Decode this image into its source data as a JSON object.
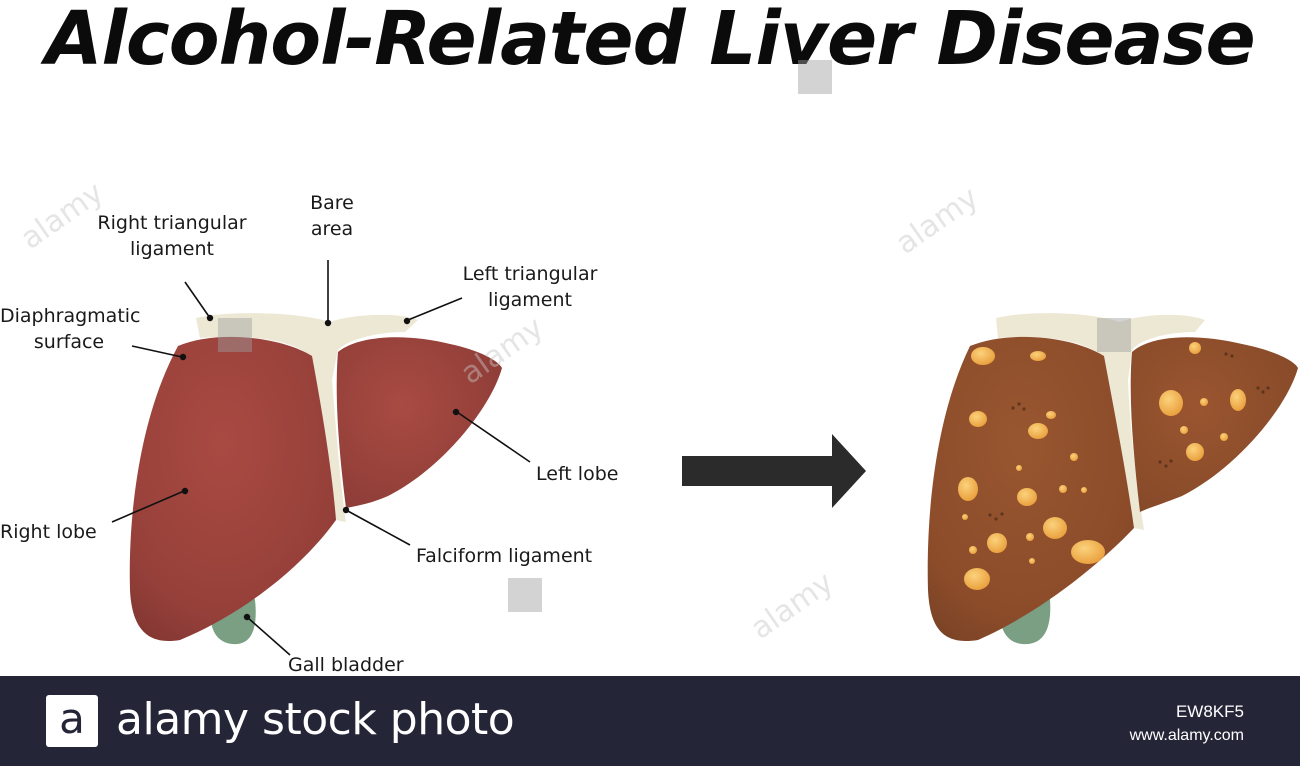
{
  "title": "Alcohol-Related Liver Disease",
  "labels": {
    "right_triangular": "Right triangular\nligament",
    "bare_area": "Bare\narea",
    "left_triangular": "Left triangular\nligament",
    "diaphragmatic": "Diaphragmatic\nsurface",
    "left_lobe": "Left lobe",
    "right_lobe": "Right lobe",
    "falciform": "Falciform ligament",
    "gall_bladder": "Gall bladder"
  },
  "footer": {
    "logo_letter": "a",
    "brand": "alamy stock photo",
    "image_code": "EW8KF5",
    "url": "www.alamy.com"
  },
  "watermark": "alamy",
  "colors": {
    "healthy_liver": "#a5483f",
    "fatty_liver": "#94522b",
    "ligament": "#ede8d4",
    "gall_bladder": "#7a9f83",
    "fat_deposit": "#f2b24a",
    "arrow": "#2b2b2b",
    "footer_bg": "#252538"
  }
}
